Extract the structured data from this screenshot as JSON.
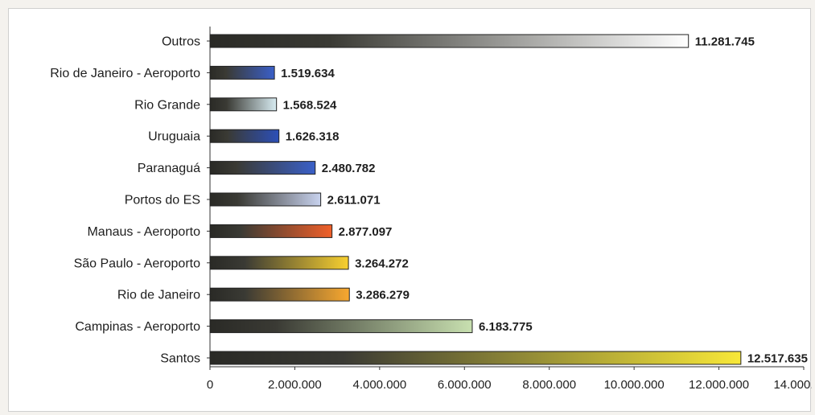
{
  "chart_data": {
    "type": "bar",
    "orientation": "horizontal",
    "title": "",
    "xlabel": "",
    "ylabel": "",
    "categories": [
      "Outros",
      "Rio de Janeiro - Aeroporto",
      "Rio Grande",
      "Uruguaia",
      "Paranaguá",
      "Portos do ES",
      "Manaus - Aeroporto",
      "São Paulo - Aeroporto",
      "Rio de Janeiro",
      "Campinas - Aeroporto",
      "Santos"
    ],
    "values": [
      11281745,
      1519634,
      1568524,
      1626318,
      2480782,
      2611071,
      2877097,
      3264272,
      3286279,
      6183775,
      12517635
    ],
    "value_labels": [
      "11.281.745",
      "1.519.634",
      "1.568.524",
      "1.626.318",
      "2.480.782",
      "2.611.071",
      "2.877.097",
      "3.264.272",
      "3.286.279",
      "6.183.775",
      "12.517.635"
    ],
    "bar_colors": [
      "#ffffff",
      "#3a5fc8",
      "#d8ecf2",
      "#2c4fb8",
      "#3a60c8",
      "#c8d2ee",
      "#f0602a",
      "#f8d030",
      "#f8a830",
      "#c8e0b0",
      "#f8e838"
    ],
    "xlim": [
      0,
      14000000
    ],
    "xticks": [
      0,
      2000000,
      4000000,
      6000000,
      8000000,
      10000000,
      12000000,
      14000000
    ],
    "xtick_labels": [
      "0",
      "2.000.000",
      "4.000.000",
      "6.000.000",
      "8.000.000",
      "10.000.000",
      "12.000.000",
      "14.000.000"
    ],
    "grid": false,
    "legend": "none"
  }
}
